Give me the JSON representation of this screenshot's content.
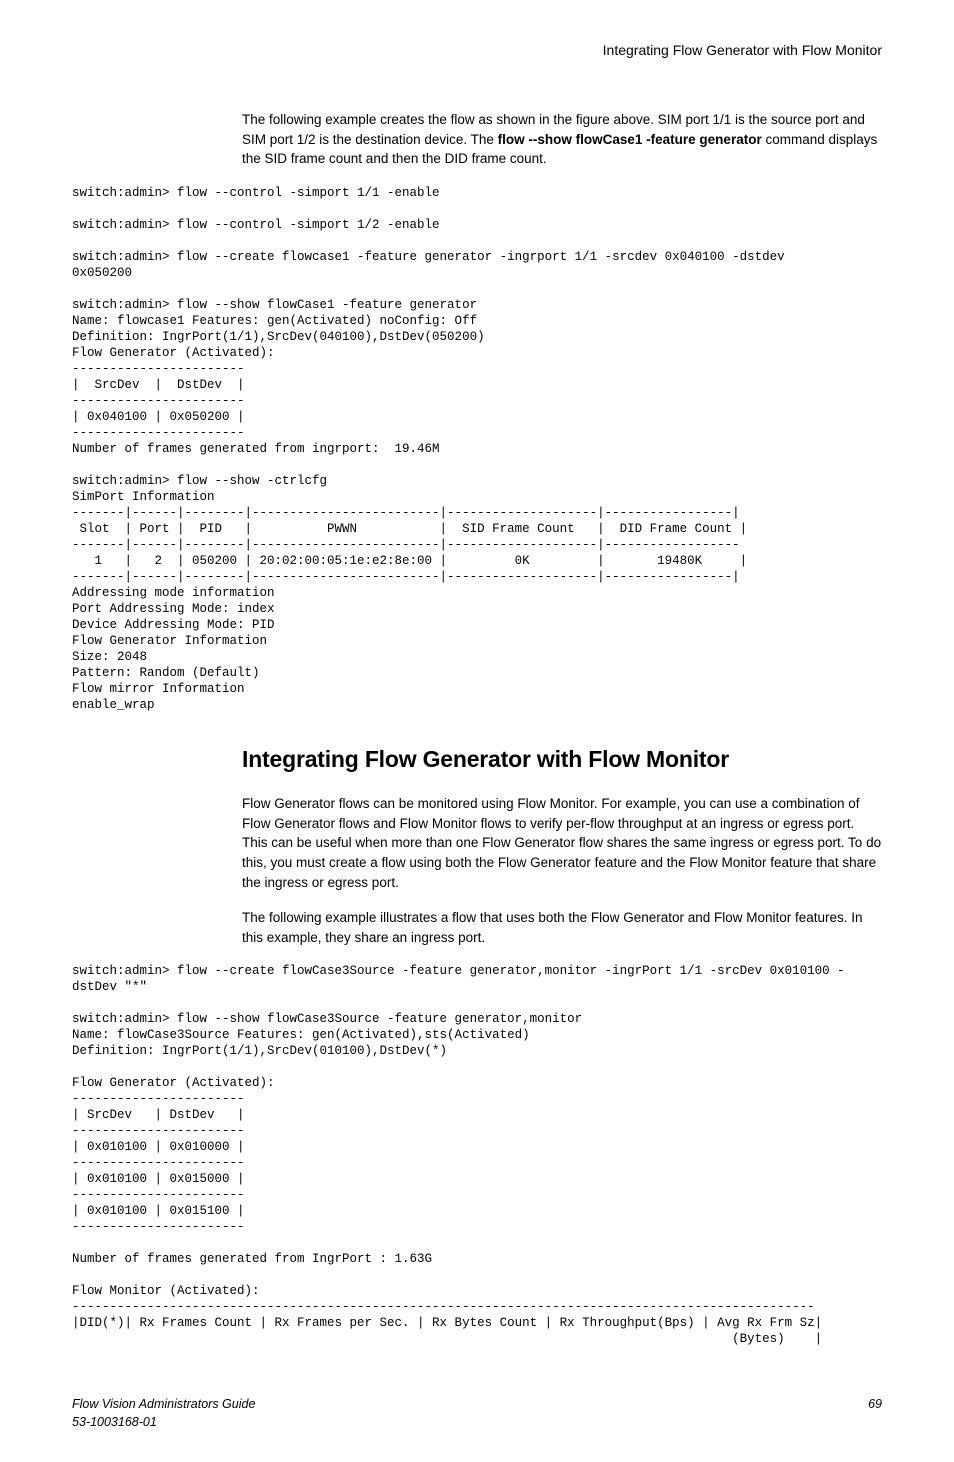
{
  "header": {
    "running_title": "Integrating Flow Generator with Flow Monitor"
  },
  "intro": {
    "para1_pre": "The following example creates the flow as shown in the figure above. SIM port 1/1 is the source port and SIM port 1/2 is the destination device. The ",
    "para1_cmd": "flow --show flowCase1 -feature generator",
    "para1_post": " command displays the SID frame count and then the DID frame count."
  },
  "terminal1": "switch:admin> flow --control -simport 1/1 -enable\n\nswitch:admin> flow --control -simport 1/2 -enable\n\nswitch:admin> flow --create flowcase1 -feature generator -ingrport 1/1 -srcdev 0x040100 -dstdev\n0x050200\n\nswitch:admin> flow --show flowCase1 -feature generator\nName: flowcase1 Features: gen(Activated) noConfig: Off\nDefinition: IngrPort(1/1),SrcDev(040100),DstDev(050200)\nFlow Generator (Activated):\n-----------------------\n|  SrcDev  |  DstDev  |\n-----------------------\n| 0x040100 | 0x050200 |\n-----------------------\nNumber of frames generated from ingrport:  19.46M\n\nswitch:admin> flow --show -ctrlcfg\nSimPort Information\n-------|------|--------|-------------------------|--------------------|-----------------|\n Slot  | Port |  PID   |          PWWN           |  SID Frame Count   |  DID Frame Count |\n-------|------|--------|-------------------------|--------------------|------------------\n   1   |   2  | 050200 | 20:02:00:05:1e:e2:8e:00 |         0K         |       19480K     |\n-------|------|--------|-------------------------|--------------------|-----------------|\nAddressing mode information\nPort Addressing Mode: index\nDevice Addressing Mode: PID\nFlow Generator Information\nSize: 2048\nPattern: Random (Default)\nFlow mirror Information\nenable_wrap",
  "section": {
    "title": "Integrating Flow Generator with Flow Monitor",
    "para1": "Flow Generator flows can be monitored using Flow Monitor. For example, you can use a combination of Flow Generator flows and Flow Monitor flows to verify per-flow throughput at an ingress or egress port. This can be useful when more than one Flow Generator flow shares the same ingress or egress port. To do this, you must create a flow using both the Flow Generator feature and the Flow Monitor feature that share the ingress or egress port.",
    "para2": "The following example illustrates a flow that uses both the Flow Generator and Flow Monitor features. In this example, they share an ingress port."
  },
  "terminal2": "switch:admin> flow --create flowCase3Source -feature generator,monitor -ingrPort 1/1 -srcDev 0x010100 -\ndstDev \"*\"\n\nswitch:admin> flow --show flowCase3Source -feature generator,monitor\nName: flowCase3Source Features: gen(Activated),sts(Activated)\nDefinition: IngrPort(1/1),SrcDev(010100),DstDev(*)\n\nFlow Generator (Activated):\n-----------------------\n| SrcDev   | DstDev   |\n-----------------------\n| 0x010100 | 0x010000 |\n-----------------------\n| 0x010100 | 0x015000 |\n-----------------------\n| 0x010100 | 0x015100 |\n-----------------------\n\nNumber of frames generated from IngrPort : 1.63G\n\nFlow Monitor (Activated):\n---------------------------------------------------------------------------------------------------\n|DID(*)| Rx Frames Count | Rx Frames per Sec. | Rx Bytes Count | Rx Throughput(Bps) | Avg Rx Frm Sz|\n                                                                                        (Bytes)    |",
  "footer": {
    "left1": "Flow Vision Administrators Guide",
    "left2": "53-1003168-01",
    "page": "69"
  }
}
